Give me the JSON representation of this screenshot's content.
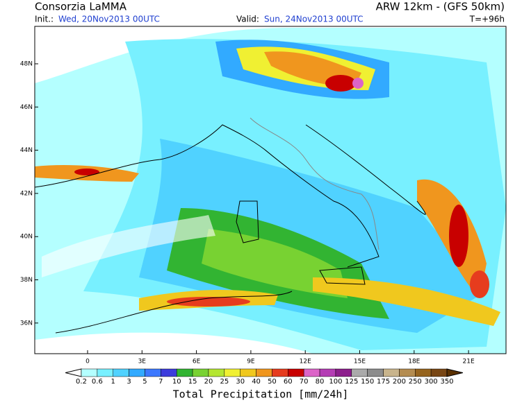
{
  "header": {
    "title": "Consorzia LaMMA",
    "init_label": "Init.:",
    "init": "Wed, 20Nov2013 00UTC",
    "valid_label": "Valid:",
    "valid": "Sun, 24Nov2013 00UTC",
    "model": "ARW 12km - (GFS 50km)",
    "lead": "T=+96h"
  },
  "map": {
    "lat_labels": [
      "48N",
      "46N",
      "44N",
      "42N",
      "40N",
      "38N",
      "36N"
    ],
    "lon_labels": [
      "0",
      "3E",
      "6E",
      "9E",
      "12E",
      "15E",
      "18E",
      "21E"
    ]
  },
  "colorbar": {
    "labels": [
      0.2,
      0.6,
      1,
      3,
      5,
      7,
      10,
      15,
      20,
      25,
      30,
      40,
      50,
      60,
      70,
      80,
      100,
      125,
      150,
      175,
      200,
      250,
      300,
      350
    ],
    "colors": [
      "#ffffff",
      "#b4ffff",
      "#78f0ff",
      "#50d2ff",
      "#32aaff",
      "#3c78ff",
      "#3c3cdc",
      "#32b432",
      "#78d232",
      "#b4e632",
      "#f0f032",
      "#f0c81e",
      "#f0961e",
      "#e63c1e",
      "#c80000",
      "#dc64c8",
      "#b43cb4",
      "#8c1e8c",
      "#aaaaaa",
      "#8c8c8c",
      "#c8b48c",
      "#b48c50",
      "#96641e",
      "#784614",
      "#5a3000"
    ],
    "caption": "Total Precipitation [mm/24h]"
  }
}
